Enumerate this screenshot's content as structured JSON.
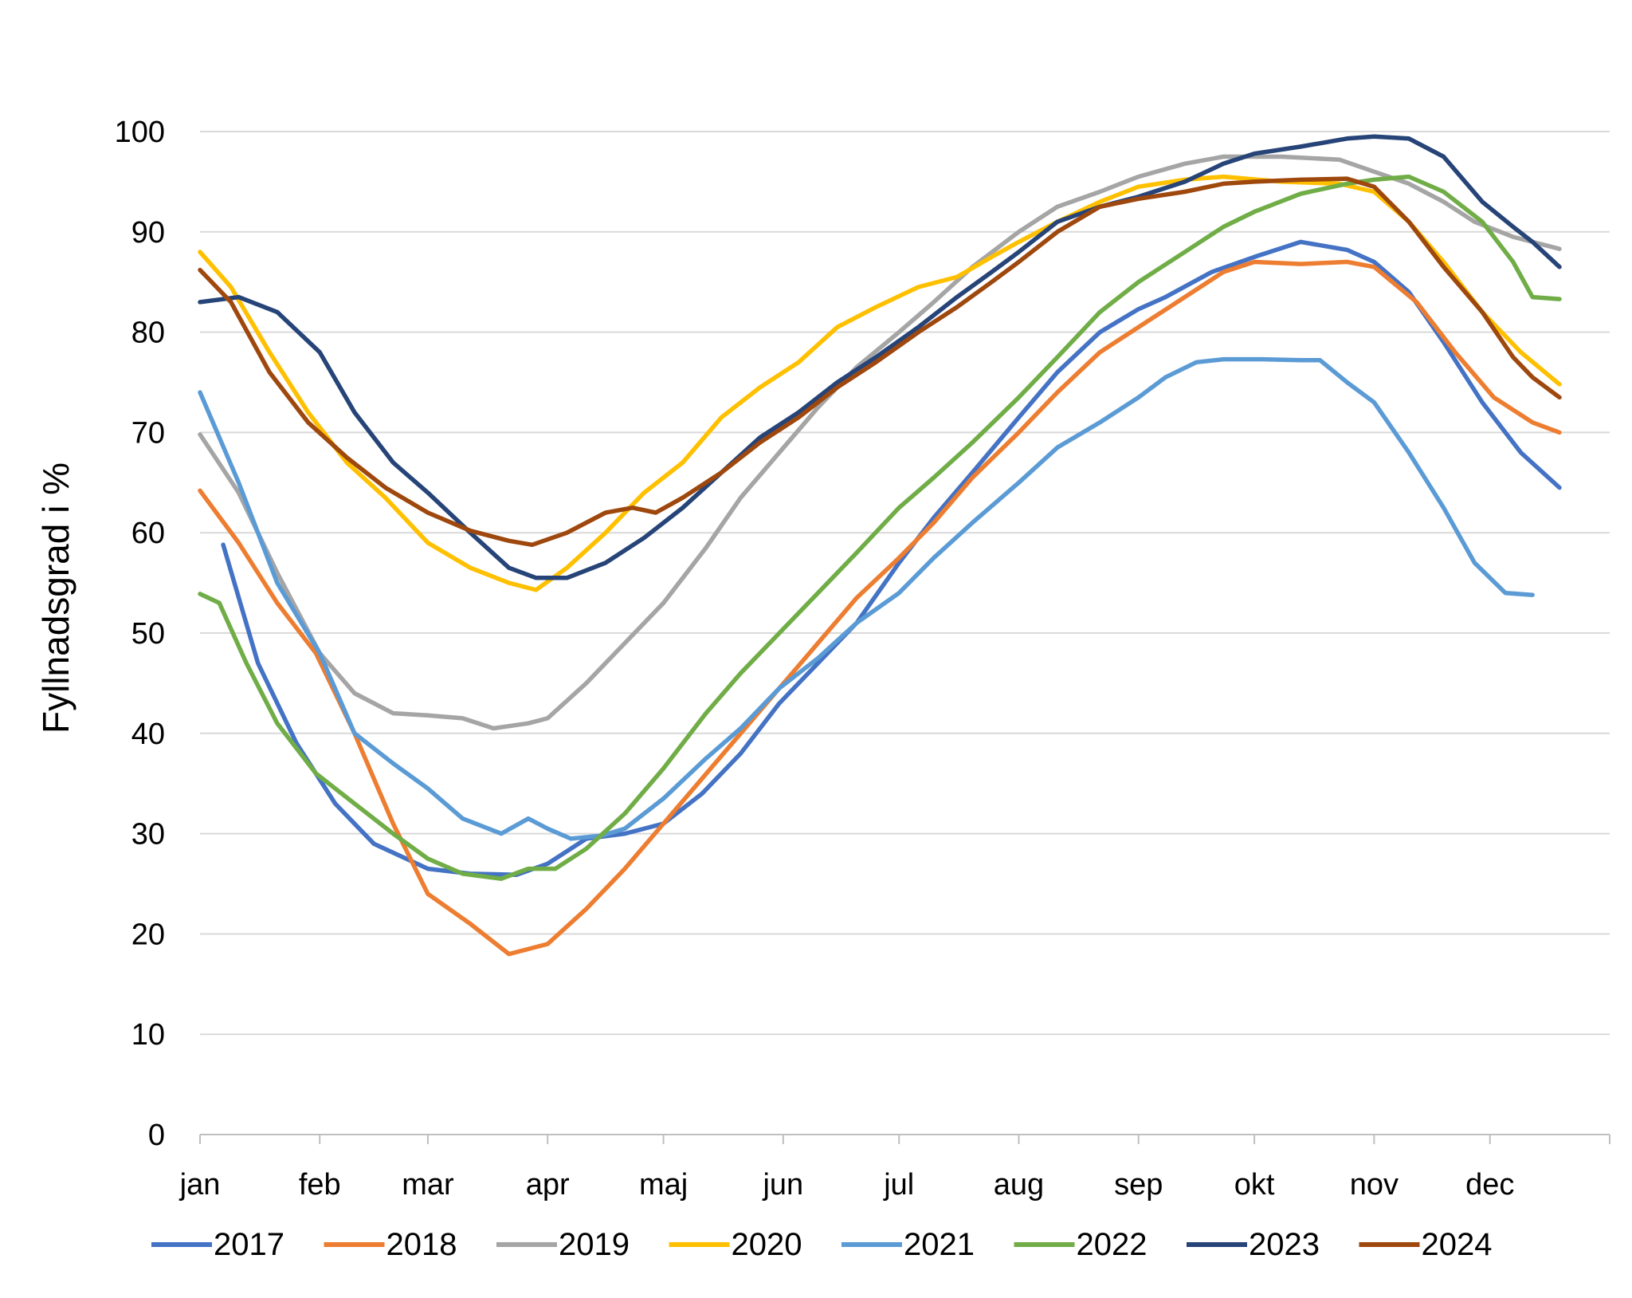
{
  "chart_data": {
    "type": "line",
    "ylabel": "Fyllnadsgrad i %",
    "ylim": [
      0,
      100
    ],
    "yticks": [
      0,
      10,
      20,
      30,
      40,
      50,
      60,
      70,
      80,
      90,
      100
    ],
    "xlim": [
      0,
      365
    ],
    "x_tick_positions": [
      0,
      31,
      59,
      90,
      120,
      151,
      181,
      212,
      243,
      273,
      304,
      334,
      365
    ],
    "month_labels": [
      {
        "label": "jan",
        "x": 0
      },
      {
        "label": "feb",
        "x": 31
      },
      {
        "label": "mar",
        "x": 59
      },
      {
        "label": "apr",
        "x": 90
      },
      {
        "label": "maj",
        "x": 120
      },
      {
        "label": "jun",
        "x": 151
      },
      {
        "label": "jul",
        "x": 181
      },
      {
        "label": "aug",
        "x": 212
      },
      {
        "label": "sep",
        "x": 243
      },
      {
        "label": "okt",
        "x": 273
      },
      {
        "label": "nov",
        "x": 304
      },
      {
        "label": "dec",
        "x": 334
      }
    ],
    "grid": "horizontal",
    "legend_position": "bottom",
    "series": [
      {
        "name": "2017",
        "color": "#4472C4",
        "points": [
          [
            6,
            58.8
          ],
          [
            15,
            47
          ],
          [
            25,
            39
          ],
          [
            35,
            33
          ],
          [
            45,
            29
          ],
          [
            59,
            26.5
          ],
          [
            70,
            26
          ],
          [
            82,
            25.9
          ],
          [
            90,
            27
          ],
          [
            100,
            29.5
          ],
          [
            110,
            30
          ],
          [
            120,
            31
          ],
          [
            130,
            34
          ],
          [
            140,
            38
          ],
          [
            150,
            43
          ],
          [
            160,
            47
          ],
          [
            170,
            51
          ],
          [
            181,
            57
          ],
          [
            190,
            61.5
          ],
          [
            200,
            66
          ],
          [
            212,
            71.5
          ],
          [
            222,
            76
          ],
          [
            233,
            80
          ],
          [
            243,
            82.3
          ],
          [
            250,
            83.5
          ],
          [
            262,
            86
          ],
          [
            273,
            87.5
          ],
          [
            285,
            89
          ],
          [
            297,
            88.2
          ],
          [
            304,
            87
          ],
          [
            313,
            84
          ],
          [
            322,
            79
          ],
          [
            332,
            73
          ],
          [
            342,
            68
          ],
          [
            352,
            64.5
          ]
        ]
      },
      {
        "name": "2018",
        "color": "#ED7D31",
        "points": [
          [
            0,
            64.2
          ],
          [
            10,
            59
          ],
          [
            20,
            53
          ],
          [
            30,
            48
          ],
          [
            40,
            40
          ],
          [
            50,
            31
          ],
          [
            59,
            24
          ],
          [
            70,
            21
          ],
          [
            80,
            18
          ],
          [
            90,
            19
          ],
          [
            100,
            22.5
          ],
          [
            110,
            26.5
          ],
          [
            120,
            31
          ],
          [
            130,
            35.5
          ],
          [
            140,
            40
          ],
          [
            150,
            44.5
          ],
          [
            160,
            49
          ],
          [
            170,
            53.5
          ],
          [
            181,
            57.5
          ],
          [
            190,
            61
          ],
          [
            200,
            65.5
          ],
          [
            212,
            70
          ],
          [
            222,
            74
          ],
          [
            233,
            78
          ],
          [
            243,
            80.5
          ],
          [
            255,
            83.5
          ],
          [
            265,
            86
          ],
          [
            273,
            87
          ],
          [
            285,
            86.8
          ],
          [
            297,
            87
          ],
          [
            304,
            86.5
          ],
          [
            315,
            83
          ],
          [
            325,
            78
          ],
          [
            335,
            73.5
          ],
          [
            345,
            71
          ],
          [
            352,
            70
          ]
        ]
      },
      {
        "name": "2019",
        "color": "#A5A5A5",
        "points": [
          [
            0,
            69.8
          ],
          [
            10,
            64
          ],
          [
            20,
            56
          ],
          [
            31,
            48
          ],
          [
            40,
            44
          ],
          [
            50,
            42
          ],
          [
            59,
            41.8
          ],
          [
            68,
            41.5
          ],
          [
            76,
            40.5
          ],
          [
            85,
            41
          ],
          [
            90,
            41.5
          ],
          [
            100,
            45
          ],
          [
            110,
            49
          ],
          [
            120,
            53
          ],
          [
            131,
            58.5
          ],
          [
            140,
            63.5
          ],
          [
            150,
            68
          ],
          [
            160,
            72.5
          ],
          [
            170,
            76.5
          ],
          [
            181,
            80
          ],
          [
            190,
            83
          ],
          [
            200,
            86.5
          ],
          [
            212,
            90
          ],
          [
            222,
            92.5
          ],
          [
            233,
            94
          ],
          [
            243,
            95.5
          ],
          [
            255,
            96.8
          ],
          [
            265,
            97.5
          ],
          [
            280,
            97.5
          ],
          [
            295,
            97.2
          ],
          [
            304,
            96
          ],
          [
            313,
            94.8
          ],
          [
            322,
            93
          ],
          [
            330,
            91
          ],
          [
            340,
            89.5
          ],
          [
            352,
            88.3
          ]
        ]
      },
      {
        "name": "2020",
        "color": "#FFC000",
        "points": [
          [
            0,
            88
          ],
          [
            8,
            84.5
          ],
          [
            18,
            78
          ],
          [
            28,
            72
          ],
          [
            38,
            67
          ],
          [
            48,
            63.5
          ],
          [
            59,
            59
          ],
          [
            70,
            56.5
          ],
          [
            80,
            55
          ],
          [
            87,
            54.3
          ],
          [
            95,
            56.5
          ],
          [
            105,
            60
          ],
          [
            115,
            64
          ],
          [
            125,
            67
          ],
          [
            135,
            71.5
          ],
          [
            145,
            74.5
          ],
          [
            155,
            77
          ],
          [
            165,
            80.5
          ],
          [
            175,
            82.5
          ],
          [
            186,
            84.5
          ],
          [
            196,
            85.5
          ],
          [
            205,
            87.5
          ],
          [
            212,
            89
          ],
          [
            222,
            91
          ],
          [
            233,
            93
          ],
          [
            243,
            94.5
          ],
          [
            255,
            95.2
          ],
          [
            265,
            95.5
          ],
          [
            280,
            95
          ],
          [
            295,
            94.8
          ],
          [
            304,
            94
          ],
          [
            313,
            91
          ],
          [
            322,
            87
          ],
          [
            332,
            82
          ],
          [
            342,
            78
          ],
          [
            352,
            74.8
          ]
        ]
      },
      {
        "name": "2021",
        "color": "#5B9BD5",
        "points": [
          [
            0,
            74
          ],
          [
            10,
            65
          ],
          [
            20,
            55
          ],
          [
            31,
            48
          ],
          [
            40,
            40
          ],
          [
            50,
            37
          ],
          [
            59,
            34.5
          ],
          [
            68,
            31.5
          ],
          [
            78,
            30
          ],
          [
            85,
            31.5
          ],
          [
            90,
            30.5
          ],
          [
            96,
            29.5
          ],
          [
            104,
            29.8
          ],
          [
            110,
            30.5
          ],
          [
            120,
            33.5
          ],
          [
            131,
            37.5
          ],
          [
            140,
            40.5
          ],
          [
            150,
            44.5
          ],
          [
            160,
            47.5
          ],
          [
            170,
            51
          ],
          [
            181,
            54
          ],
          [
            190,
            57.5
          ],
          [
            200,
            61
          ],
          [
            212,
            65
          ],
          [
            222,
            68.5
          ],
          [
            233,
            71
          ],
          [
            243,
            73.5
          ],
          [
            250,
            75.5
          ],
          [
            258,
            77
          ],
          [
            265,
            77.3
          ],
          [
            275,
            77.3
          ],
          [
            285,
            77.2
          ],
          [
            290,
            77.2
          ],
          [
            297,
            75
          ],
          [
            304,
            73
          ],
          [
            313,
            68
          ],
          [
            322,
            62.5
          ],
          [
            330,
            57
          ],
          [
            338,
            54
          ],
          [
            345,
            53.8
          ]
        ]
      },
      {
        "name": "2022",
        "color": "#70AD47",
        "points": [
          [
            0,
            53.9
          ],
          [
            5,
            53
          ],
          [
            12,
            47
          ],
          [
            20,
            41
          ],
          [
            30,
            36
          ],
          [
            40,
            33
          ],
          [
            50,
            30
          ],
          [
            59,
            27.5
          ],
          [
            68,
            26
          ],
          [
            78,
            25.5
          ],
          [
            85,
            26.5
          ],
          [
            92,
            26.5
          ],
          [
            100,
            28.5
          ],
          [
            110,
            32
          ],
          [
            120,
            36.5
          ],
          [
            131,
            42
          ],
          [
            140,
            46
          ],
          [
            150,
            50
          ],
          [
            160,
            54
          ],
          [
            170,
            58
          ],
          [
            181,
            62.5
          ],
          [
            190,
            65.5
          ],
          [
            200,
            69
          ],
          [
            212,
            73.5
          ],
          [
            222,
            77.5
          ],
          [
            233,
            82
          ],
          [
            243,
            85
          ],
          [
            255,
            88
          ],
          [
            265,
            90.5
          ],
          [
            273,
            92
          ],
          [
            285,
            93.8
          ],
          [
            297,
            94.8
          ],
          [
            304,
            95.2
          ],
          [
            313,
            95.5
          ],
          [
            322,
            94
          ],
          [
            332,
            91
          ],
          [
            340,
            87
          ],
          [
            345,
            83.5
          ],
          [
            352,
            83.3
          ]
        ]
      },
      {
        "name": "2023",
        "color": "#264478",
        "points": [
          [
            0,
            83
          ],
          [
            10,
            83.5
          ],
          [
            20,
            82
          ],
          [
            31,
            78
          ],
          [
            40,
            72
          ],
          [
            50,
            67
          ],
          [
            59,
            64
          ],
          [
            70,
            60
          ],
          [
            80,
            56.5
          ],
          [
            87,
            55.5
          ],
          [
            95,
            55.5
          ],
          [
            105,
            57
          ],
          [
            115,
            59.5
          ],
          [
            125,
            62.5
          ],
          [
            135,
            66
          ],
          [
            145,
            69.5
          ],
          [
            155,
            72
          ],
          [
            165,
            75
          ],
          [
            175,
            77.5
          ],
          [
            186,
            80.5
          ],
          [
            196,
            83.5
          ],
          [
            205,
            86
          ],
          [
            212,
            88
          ],
          [
            222,
            91
          ],
          [
            233,
            92.5
          ],
          [
            243,
            93.5
          ],
          [
            255,
            95
          ],
          [
            265,
            96.8
          ],
          [
            273,
            97.8
          ],
          [
            285,
            98.5
          ],
          [
            297,
            99.3
          ],
          [
            304,
            99.5
          ],
          [
            313,
            99.3
          ],
          [
            322,
            97.5
          ],
          [
            332,
            93
          ],
          [
            340,
            90.5
          ],
          [
            345,
            89
          ],
          [
            352,
            86.5
          ]
        ]
      },
      {
        "name": "2024",
        "color": "#9E480E",
        "points": [
          [
            0,
            86.2
          ],
          [
            8,
            83
          ],
          [
            18,
            76
          ],
          [
            28,
            71
          ],
          [
            38,
            67.5
          ],
          [
            48,
            64.5
          ],
          [
            59,
            62
          ],
          [
            70,
            60.2
          ],
          [
            80,
            59.2
          ],
          [
            86,
            58.8
          ],
          [
            95,
            60
          ],
          [
            105,
            62
          ],
          [
            112,
            62.5
          ],
          [
            118,
            62
          ],
          [
            125,
            63.5
          ],
          [
            135,
            66
          ],
          [
            145,
            69
          ],
          [
            155,
            71.5
          ],
          [
            165,
            74.5
          ],
          [
            175,
            77
          ],
          [
            186,
            80
          ],
          [
            196,
            82.5
          ],
          [
            205,
            85
          ],
          [
            212,
            87
          ],
          [
            222,
            90
          ],
          [
            233,
            92.5
          ],
          [
            243,
            93.3
          ],
          [
            255,
            94
          ],
          [
            265,
            94.8
          ],
          [
            273,
            95
          ],
          [
            285,
            95.2
          ],
          [
            297,
            95.3
          ],
          [
            304,
            94.5
          ],
          [
            313,
            91
          ],
          [
            322,
            86.5
          ],
          [
            332,
            82
          ],
          [
            340,
            77.5
          ],
          [
            345,
            75.5
          ],
          [
            352,
            73.5
          ]
        ]
      }
    ]
  }
}
